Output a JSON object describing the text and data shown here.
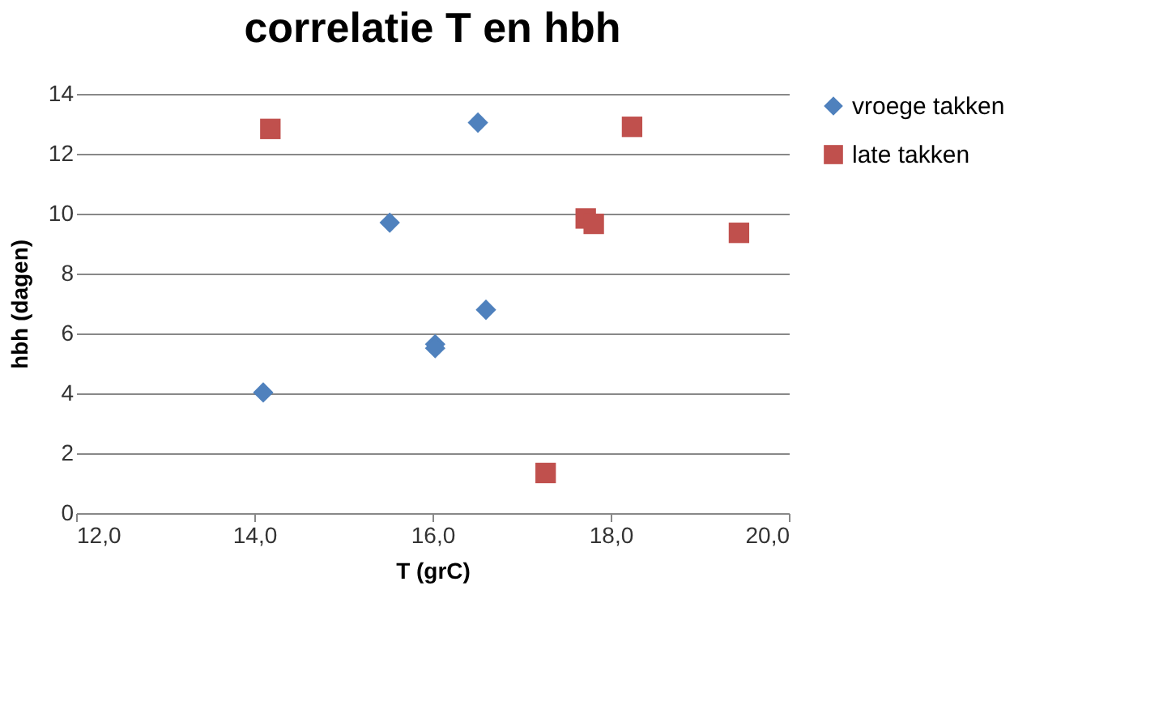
{
  "chart_data": {
    "type": "scatter",
    "title": "correlatie T en hbh",
    "xlabel": "T (grC)",
    "ylabel": "hbh (dagen)",
    "series": [
      {
        "name": "vroege takken",
        "color": "#4f81bd",
        "marker": "diamond",
        "x": [
          14.1,
          15.52,
          16.51,
          16.03,
          16.03,
          16.6
        ],
        "values": [
          4.03,
          9.7,
          13.04,
          5.64,
          5.51,
          6.79
        ]
      },
      {
        "name": "late takken",
        "color": "#c0504d",
        "marker": "square",
        "x": [
          14.18,
          18.24,
          17.72,
          17.81,
          19.44,
          17.27
        ],
        "values": [
          12.83,
          12.9,
          9.84,
          9.66,
          9.36,
          1.34
        ]
      }
    ],
    "xlim": [
      12,
      20
    ],
    "xticks": [
      {
        "value": 12,
        "label": "12,0"
      },
      {
        "value": 14,
        "label": "14,0"
      },
      {
        "value": 16,
        "label": "16,0"
      },
      {
        "value": 18,
        "label": "18,0"
      },
      {
        "value": 20,
        "label": "20,0"
      }
    ],
    "ylim": [
      0,
      14
    ],
    "yticks": [
      0,
      2,
      4,
      6,
      8,
      10,
      12,
      14
    ],
    "grid": "y",
    "legend": "right"
  }
}
